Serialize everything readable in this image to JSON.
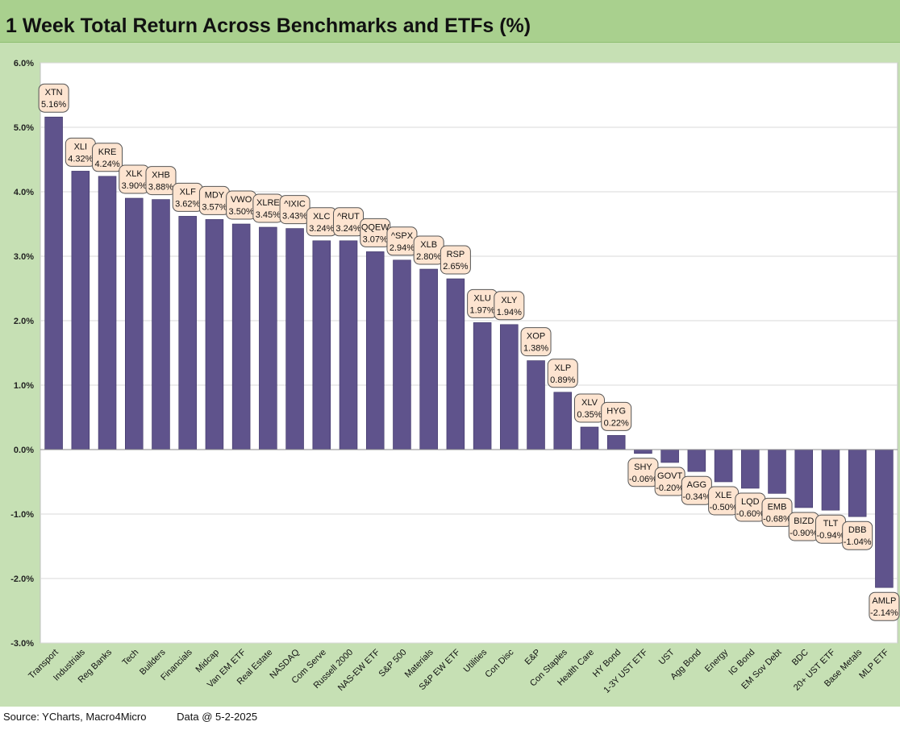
{
  "title": "1 Week Total Return Across Benchmarks and ETFs (%)",
  "footer": {
    "source": "Source: YCharts, Macro4Micro",
    "date": "Data @ 5-2-2025"
  },
  "colors": {
    "bar": "#5f538c",
    "background": "#c6e0b4",
    "title_bar": "#a9d08e",
    "label_fill": "#fde4d0"
  },
  "chart_data": {
    "type": "bar",
    "categories": [
      "Transport",
      "Industrials",
      "Reg Banks",
      "Tech",
      "Builders",
      "Financials",
      "Midcap",
      "Van EM ETF",
      "Real Estate",
      "NASDAQ",
      "Com Serve",
      "Russell 2000",
      "NAS-EW ETF",
      "S&P 500",
      "Materials",
      "S&P EW ETF",
      "Utilities",
      "Con Disc",
      "E&P",
      "Con Staples",
      "Health Care",
      "HY Bond",
      "1-3Y UST ETF",
      "UST",
      "Agg Bond",
      "Energy",
      "IG Bond",
      "EM Sov Debt",
      "BDC",
      "20+ UST ETF",
      "Base Metals",
      "MLP ETF"
    ],
    "tickers": [
      "XTN",
      "XLI",
      "KRE",
      "XLK",
      "XHB",
      "XLF",
      "MDY",
      "VWO",
      "XLRE",
      "^IXIC",
      "XLC",
      "^RUT",
      "QQEW",
      "^SPX",
      "XLB",
      "RSP",
      "XLU",
      "XLY",
      "XOP",
      "XLP",
      "XLV",
      "HYG",
      "SHY",
      "GOVT",
      "AGG",
      "XLE",
      "LQD",
      "EMB",
      "BIZD",
      "TLT",
      "DBB",
      "AMLP"
    ],
    "values": [
      5.16,
      4.32,
      4.24,
      3.9,
      3.88,
      3.62,
      3.57,
      3.5,
      3.45,
      3.43,
      3.24,
      3.24,
      3.07,
      2.94,
      2.8,
      2.65,
      1.97,
      1.94,
      1.38,
      0.89,
      0.35,
      0.22,
      -0.06,
      -0.2,
      -0.34,
      -0.5,
      -0.6,
      -0.68,
      -0.9,
      -0.94,
      -1.04,
      -2.14
    ],
    "value_labels": [
      "5.16%",
      "4.32%",
      "4.24%",
      "3.90%",
      "3.88%",
      "3.62%",
      "3.57%",
      "3.50%",
      "3.45%",
      "3.43%",
      "3.24%",
      "3.24%",
      "3.07%",
      "2.94%",
      "2.80%",
      "2.65%",
      "1.97%",
      "1.94%",
      "1.38%",
      "0.89%",
      "0.35%",
      "0.22%",
      "-0.06%",
      "-0.20%",
      "-0.34%",
      "-0.50%",
      "-0.60%",
      "-0.68%",
      "-0.90%",
      "-0.94%",
      "-1.04%",
      "-2.14%"
    ],
    "ylim": [
      -3.0,
      6.0
    ],
    "yticks": [
      6.0,
      5.0,
      4.0,
      3.0,
      2.0,
      1.0,
      0.0,
      -1.0,
      -2.0,
      -3.0
    ],
    "ytick_labels": [
      "6.0%",
      "5.0%",
      "4.0%",
      "3.0%",
      "2.0%",
      "1.0%",
      "0.0%",
      "-1.0%",
      "-2.0%",
      "-3.0%"
    ],
    "grid": true,
    "legend": "none"
  }
}
